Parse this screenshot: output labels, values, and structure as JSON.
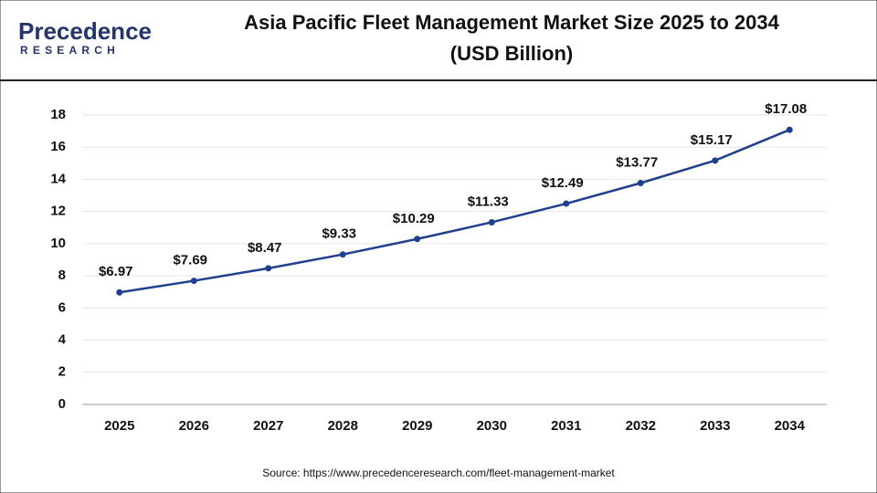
{
  "logo": {
    "name": "Precedence",
    "tagline": "RESEARCH"
  },
  "chart_data": {
    "type": "line",
    "title_lines": [
      "Asia Pacific Fleet Management Market Size 2025 to 2034",
      "(USD Billion)"
    ],
    "categories": [
      "2025",
      "2026",
      "2027",
      "2028",
      "2029",
      "2030",
      "2031",
      "2032",
      "2033",
      "2034"
    ],
    "series": [
      {
        "color": "#213f8f",
        "values": [
          6.97,
          7.69,
          8.47,
          9.33,
          10.29,
          11.33,
          12.49,
          13.77,
          15.17,
          17.08
        ],
        "value_labels": [
          "$6.97",
          "$7.69",
          "$8.47",
          "$9.33",
          "$10.29",
          "$11.33",
          "$12.49",
          "$13.77",
          "$15.17",
          "$17.08"
        ]
      }
    ],
    "ylim": [
      0,
      18
    ],
    "yticks": [
      0,
      2,
      4,
      6,
      8,
      10,
      12,
      14,
      16,
      18
    ],
    "grid": true,
    "source": "Source: https://www.precedenceresearch.com/fleet-management-market"
  }
}
